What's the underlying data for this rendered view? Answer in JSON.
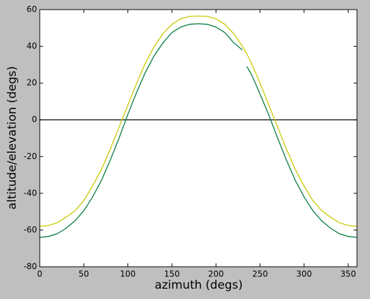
{
  "chart_data": {
    "type": "line",
    "x_label": "azimuth (degs)",
    "y_label": "altitude/elevation (degs)",
    "x": [
      0,
      10,
      20,
      30,
      40,
      50,
      60,
      70,
      80,
      90,
      100,
      110,
      120,
      130,
      140,
      150,
      160,
      170,
      180,
      190,
      200,
      210,
      220,
      230,
      232,
      235,
      240,
      250,
      260,
      270,
      280,
      290,
      300,
      310,
      320,
      330,
      340,
      350,
      360
    ],
    "series": [
      {
        "color": "#c8c800",
        "values": [
          -58,
          -57.5,
          -56,
          -53,
          -49.5,
          -44,
          -36,
          -27,
          -16,
          -4,
          8,
          20,
          31,
          40,
          47,
          52,
          55,
          56.3,
          56.5,
          56.3,
          55,
          52,
          47,
          40,
          38.5,
          36,
          31,
          20,
          8,
          -4,
          -16,
          -27,
          -36,
          -44,
          -49.5,
          -53,
          -56,
          -57.5,
          -58
        ]
      },
      {
        "color": "#007a3d",
        "values": [
          -64,
          -63.5,
          -62,
          -59,
          -55,
          -49.5,
          -42,
          -33,
          -22,
          -10,
          3,
          15,
          26,
          35,
          42,
          47.5,
          50.5,
          52,
          52.3,
          52,
          50.5,
          47.5,
          42,
          38,
          null,
          29,
          25,
          14,
          2.5,
          -10,
          -22,
          -33,
          -42,
          -49.5,
          -55,
          -59,
          -62,
          -63.5,
          -64
        ]
      }
    ],
    "hline": 0,
    "hline_color": "#000000",
    "xlim": [
      0,
      360
    ],
    "xticks": [
      0,
      50,
      100,
      150,
      200,
      250,
      300,
      350
    ],
    "ylim": [
      -80,
      60
    ],
    "yticks": [
      -80,
      -60,
      -40,
      -20,
      0,
      20,
      40,
      60
    ]
  }
}
